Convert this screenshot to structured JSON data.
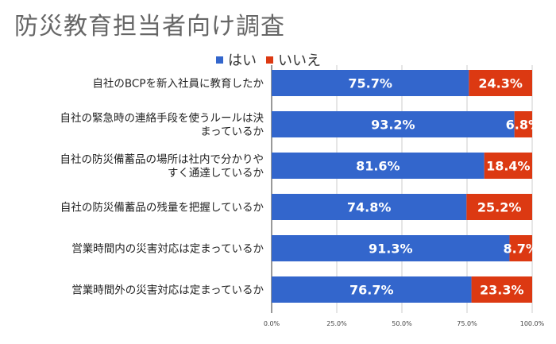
{
  "title": "防災教育担当者向け調査",
  "chart_data": {
    "type": "bar",
    "orientation": "horizontal",
    "stacked": true,
    "categories": [
      [
        "自社のBCPを新入社員に教育したか"
      ],
      [
        "自社の緊急時の連絡手段を使うルールは決",
        "まっているか"
      ],
      [
        "自社の防災備蓄品の場所は社内で分かりや",
        "すく通達しているか"
      ],
      [
        "自社の防災備蓄品の残量を把握しているか"
      ],
      [
        "営業時間内の災害対応は定まっているか"
      ],
      [
        "営業時間外の災害対応は定まっているか"
      ]
    ],
    "series": [
      {
        "name": "はい",
        "color": "#3366cc",
        "values": [
          75.7,
          93.2,
          81.6,
          74.8,
          91.3,
          76.7
        ],
        "labels": [
          "75.7%",
          "93.2%",
          "81.6%",
          "74.8%",
          "91.3%",
          "76.7%"
        ]
      },
      {
        "name": "いいえ",
        "color": "#dc3912",
        "values": [
          24.3,
          6.8,
          18.4,
          25.2,
          8.7,
          23.3
        ],
        "labels": [
          "24.3%",
          "6.8%",
          "18.4%",
          "25.2%",
          "8.7%",
          "23.3%"
        ]
      }
    ],
    "xlim": [
      0,
      100
    ],
    "xticks": [
      "0.0%",
      "25.0%",
      "50.0%",
      "75.0%",
      "100.0%"
    ],
    "grid": true,
    "legend_position": "top"
  }
}
